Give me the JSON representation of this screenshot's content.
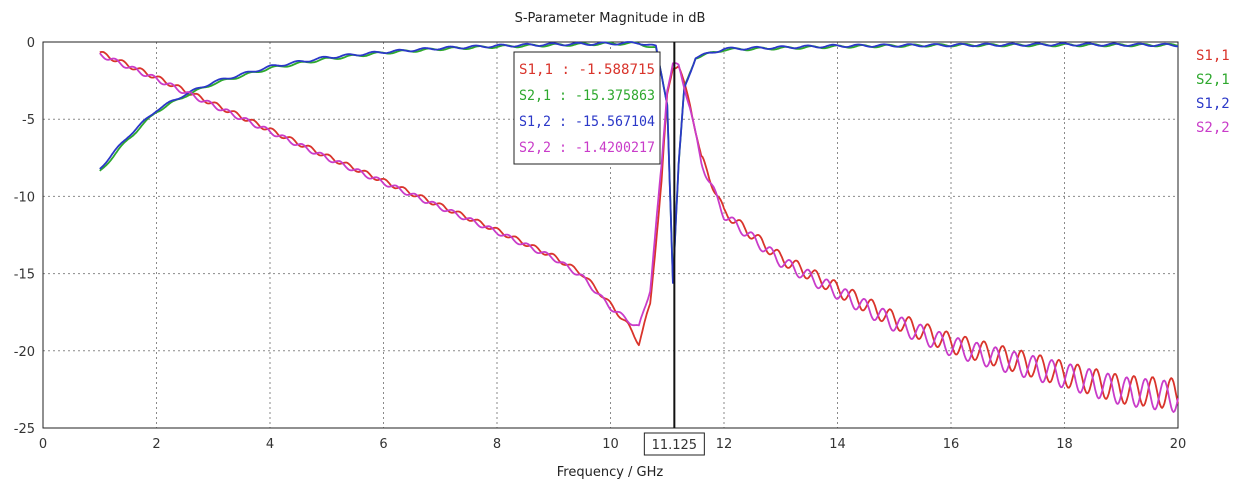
{
  "chart_data": {
    "type": "line",
    "title": "S-Parameter Magnitude in dB",
    "xlabel": "Frequency / GHz",
    "ylabel": "",
    "xlim": [
      0,
      20
    ],
    "ylim": [
      -25,
      0
    ],
    "xticks": [
      0,
      2,
      4,
      6,
      8,
      10,
      12,
      14,
      16,
      18,
      20
    ],
    "yticks": [
      0,
      -5,
      -10,
      -15,
      -20,
      -25
    ],
    "grid": true,
    "legend_position": "right",
    "marker": {
      "x": 11.125,
      "label": "11.125",
      "readouts": [
        {
          "text": "S1,1 : -1.588715",
          "color": "#d9342b"
        },
        {
          "text": "S2,1 : -15.375863",
          "color": "#2ea82e"
        },
        {
          "text": "S1,2 : -15.567104",
          "color": "#2b38c8"
        },
        {
          "text": "S2,2 : -1.4200217",
          "color": "#c93cc9"
        }
      ]
    },
    "series": [
      {
        "name": "S1,1",
        "color": "#d9342b",
        "group": "reflection",
        "x": [
          1,
          2,
          3,
          4,
          5,
          6,
          7,
          8,
          9,
          9.5,
          10,
          10.3,
          10.5,
          10.7,
          10.9,
          11.0,
          11.1,
          11.2,
          11.4,
          11.6,
          12,
          13,
          14,
          15,
          16,
          17,
          18,
          19,
          20
        ],
        "y": [
          -0.7,
          -2.3,
          -4.0,
          -5.7,
          -7.4,
          -9.0,
          -10.6,
          -12.2,
          -13.9,
          -15.0,
          -17.0,
          -18.3,
          -19.5,
          -17.0,
          -9.0,
          -3.5,
          -1.6,
          -1.5,
          -4.0,
          -7.5,
          -11.0,
          -14.0,
          -16.0,
          -18.0,
          -19.5,
          -20.5,
          -21.5,
          -22.5,
          -22.8
        ]
      },
      {
        "name": "S2,1",
        "color": "#2ea82e",
        "group": "transmission",
        "x": [
          1,
          1.5,
          2,
          2.5,
          3,
          4,
          5,
          6,
          7,
          8,
          9,
          10,
          10.5,
          10.8,
          11.0,
          11.1,
          11.2,
          11.3,
          11.5,
          12,
          14,
          16,
          18,
          20
        ],
        "y": [
          -8.4,
          -6.3,
          -4.5,
          -3.5,
          -2.7,
          -1.7,
          -1.1,
          -0.7,
          -0.45,
          -0.3,
          -0.2,
          -0.1,
          -0.1,
          -0.4,
          -4.0,
          -15.4,
          -8.0,
          -3.0,
          -1.0,
          -0.5,
          -0.3,
          -0.2,
          -0.2,
          -0.2
        ]
      },
      {
        "name": "S1,2",
        "color": "#2b38c8",
        "group": "transmission",
        "x": [
          1,
          1.5,
          2,
          2.5,
          3,
          4,
          5,
          6,
          7,
          8,
          9,
          10,
          10.5,
          10.8,
          11.0,
          11.1,
          11.2,
          11.3,
          11.5,
          12,
          14,
          16,
          18,
          20
        ],
        "y": [
          -8.2,
          -6.1,
          -4.4,
          -3.4,
          -2.6,
          -1.6,
          -1.0,
          -0.65,
          -0.4,
          -0.25,
          -0.15,
          -0.1,
          -0.05,
          -0.3,
          -4.0,
          -15.6,
          -8.0,
          -3.0,
          -1.0,
          -0.45,
          -0.25,
          -0.2,
          -0.15,
          -0.2
        ]
      },
      {
        "name": "S2,2",
        "color": "#c93cc9",
        "group": "reflection",
        "x": [
          1,
          2,
          3,
          4,
          5,
          6,
          7,
          8,
          9,
          9.5,
          10,
          10.3,
          10.5,
          10.7,
          10.9,
          11.0,
          11.1,
          11.2,
          11.4,
          11.6,
          12,
          13,
          14,
          15,
          16,
          17,
          18,
          19,
          20
        ],
        "y": [
          -0.8,
          -2.4,
          -4.1,
          -5.8,
          -7.5,
          -9.1,
          -10.7,
          -12.3,
          -14.0,
          -15.2,
          -17.2,
          -18.0,
          -18.5,
          -16.0,
          -8.0,
          -3.0,
          -1.4,
          -1.6,
          -4.2,
          -7.8,
          -11.2,
          -14.2,
          -16.2,
          -18.2,
          -19.7,
          -20.7,
          -21.6,
          -22.6,
          -23.0
        ]
      }
    ]
  }
}
